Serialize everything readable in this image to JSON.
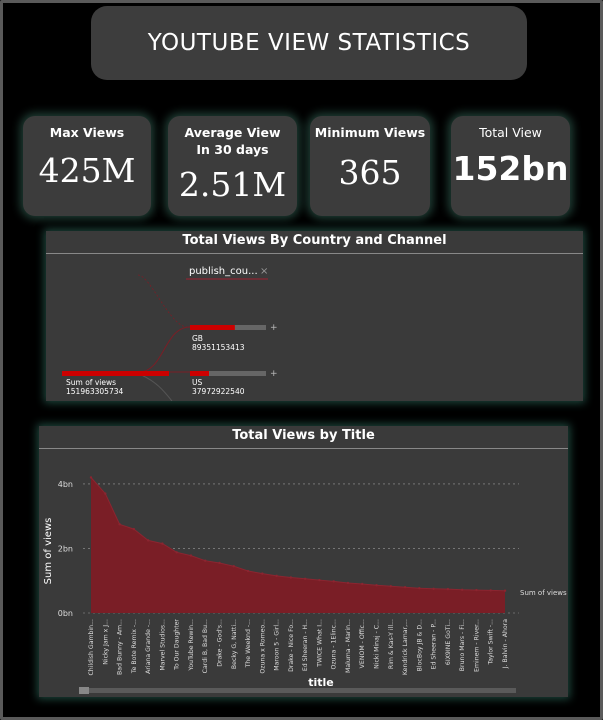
{
  "header": {
    "title": "YOUTUBE VIEW STATISTICS"
  },
  "kpis": {
    "max": {
      "label": "Max Views",
      "value": "425M"
    },
    "avg": {
      "label": "Average View In 30 days",
      "value": "2.51M"
    },
    "min": {
      "label": "Minimum Views",
      "value": "365"
    },
    "total": {
      "label": "Total View",
      "value": "152bn"
    }
  },
  "decomposition": {
    "title": "Total Views By Country and Channel",
    "filter_chip": "publish_cou...",
    "root": {
      "label": "Sum of views",
      "value": "151963305734",
      "fraction": 1.0
    },
    "nodes": [
      {
        "label": "GB",
        "value": "89351153413",
        "fraction": 0.59
      },
      {
        "label": "US",
        "value": "37972922540",
        "fraction": 0.25
      }
    ],
    "expand_glyph": "+",
    "close_glyph": "×"
  },
  "title_chart": {
    "title": "Total Views by Title",
    "xlabel": "title",
    "ylabel": "Sum of views",
    "legend_label": "Sum of views",
    "yticks": [
      "4bn",
      "2bn",
      "0bn"
    ],
    "colors": {
      "fill": "#7a1e26",
      "line": "#8b2530",
      "grid": "#9a9a9a"
    }
  },
  "chart_data": {
    "type": "area",
    "title": "Total Views by Title",
    "xlabel": "title",
    "ylabel": "Sum of views",
    "ylim": [
      0,
      4.4
    ],
    "unit": "bn",
    "categories": [
      "Childish Gambin...",
      "Nicky Jam x J...",
      "Bad Bunny - Am...",
      "Te Bote Remix -...",
      "Ariana Grande -...",
      "Marvel Studios...",
      "To Our Daughter",
      "YouTube Rewin...",
      "Cardi B, Bad Bu...",
      "Drake - God's...",
      "Becky G, Natti...",
      "The Weeknd -...",
      "Ozuna x Romeo...",
      "Maroon 5 - Girl...",
      "Drake - Nice Fo...",
      "Ed Sheeran - H...",
      "TWICE What I...",
      "Ozuna - 1Elinc...",
      "Maluma - Marin...",
      "VENOM - Offic...",
      "Nicki Minaj - C...",
      "Rim & Kas-Y ill...",
      "Kendrick Lamar,...",
      "BlocBoy JB & D...",
      "Ed Sheeran - P...",
      "6IX9INE GoTi...",
      "Bruno Mars - Fi...",
      "Eminem - River...",
      "Taylor Swift -...",
      "J. Balvin - Ahora"
    ],
    "series": [
      {
        "name": "Sum of views",
        "values": [
          4.2,
          3.7,
          2.75,
          2.6,
          2.25,
          2.15,
          1.88,
          1.78,
          1.62,
          1.55,
          1.45,
          1.3,
          1.22,
          1.15,
          1.1,
          1.06,
          1.02,
          0.98,
          0.93,
          0.9,
          0.86,
          0.83,
          0.8,
          0.77,
          0.75,
          0.74,
          0.72,
          0.71,
          0.7,
          0.69
        ]
      }
    ]
  }
}
